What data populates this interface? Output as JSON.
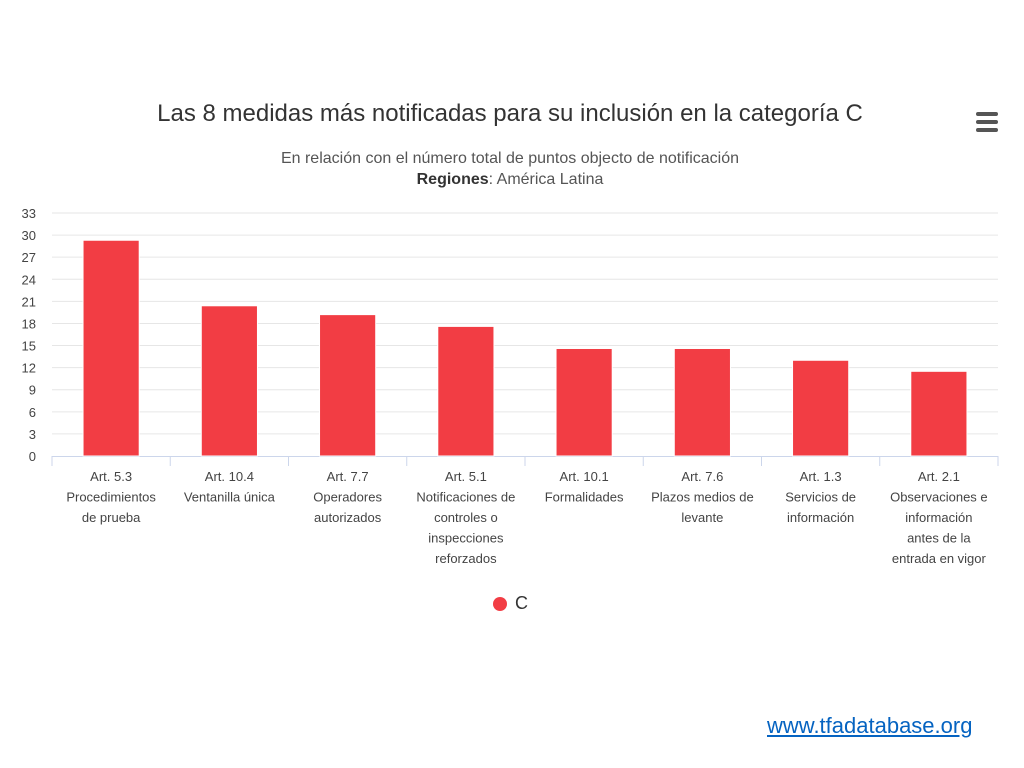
{
  "header": {
    "title": "Las 8 medidas más notificadas para su inclusión en la categoría C",
    "subtitle_line1": "En relación con el número total de puntos objecto de notificación",
    "subtitle_region_label": "Regiones",
    "subtitle_region_value": ": América Latina"
  },
  "menu": {
    "icon": "hamburger-menu-icon"
  },
  "chart_data": {
    "type": "bar",
    "categories": [
      [
        "Art. 5.3",
        "Procedimientos",
        "de prueba"
      ],
      [
        "Art. 10.4",
        "Ventanilla única"
      ],
      [
        "Art. 7.7",
        "Operadores",
        "autorizados"
      ],
      [
        "Art. 5.1",
        "Notificaciones de",
        "controles o",
        "inspecciones",
        "reforzados"
      ],
      [
        "Art. 10.1",
        "Formalidades"
      ],
      [
        "Art. 7.6",
        "Plazos medios de",
        "levante"
      ],
      [
        "Art. 1.3",
        "Servicios de",
        "información"
      ],
      [
        "Art. 2.1",
        "Observaciones e",
        "información",
        "antes de la",
        "entrada en vigor"
      ]
    ],
    "series": [
      {
        "name": "C",
        "color": "#f23d44",
        "values": [
          29.3,
          20.4,
          19.2,
          17.6,
          14.6,
          14.6,
          13.0,
          11.5
        ]
      }
    ],
    "ylim": [
      0,
      33
    ],
    "yticks": [
      0,
      3,
      6,
      9,
      12,
      15,
      18,
      21,
      24,
      27,
      30,
      33
    ],
    "grid": true,
    "legend_position": "bottom"
  },
  "legend": {
    "label": "C",
    "color": "#f23d44"
  },
  "footer": {
    "link_text": "www.tfadatabase.org"
  }
}
